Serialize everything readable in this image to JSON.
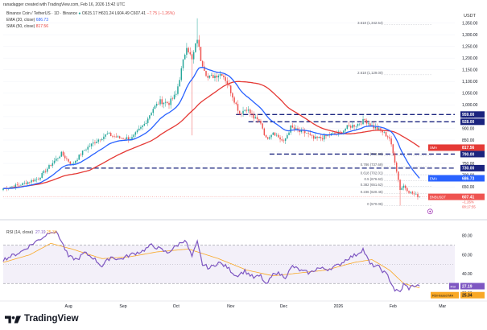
{
  "header": {
    "created_line": "ranadagger created with TradingView.com, Feb 16, 2026 15:42 UTC",
    "symbol_line_start": "Binance Coin / TetherUS · 1D · Binance",
    "ohlc": [
      "O615.17",
      "H631.24",
      "L604.49",
      "C607.41",
      "−7.75 (−1.26%)"
    ],
    "ema_line": [
      "EMA (20, close)",
      "686.73"
    ],
    "sma_line": [
      "SMA (50, close)",
      "817.56"
    ],
    "currency": "USDT"
  },
  "colors": {
    "up": "#26a69a",
    "down": "#ef5350",
    "ema": "#2962ff",
    "sma": "#e53935",
    "rsi": "#7e57c2",
    "rsi_ma": "#f9a825",
    "level": "#1a237e",
    "bg": "#ffffff"
  },
  "chart_data": [
    {
      "type": "candlestick",
      "title": "Binance Coin / TetherUS · 1D · Binance",
      "ylabel": "USDT",
      "ylim": [
        520,
        1400
      ],
      "x_ticks": [
        "Aug",
        "Sep",
        "Oct",
        "Nov",
        "Dec",
        "2026",
        "Feb",
        "Mar"
      ],
      "y_ticks": [
        600,
        650,
        700,
        750,
        800,
        850,
        900,
        950,
        1000,
        1050,
        1100,
        1150,
        1200,
        1250,
        1300,
        1350
      ],
      "close_anchors": [
        [
          "2025-06-25",
          643
        ],
        [
          "2025-07-05",
          660
        ],
        [
          "2025-07-15",
          686
        ],
        [
          "2025-07-22",
          745
        ],
        [
          "2025-07-28",
          792
        ],
        [
          "2025-08-03",
          745
        ],
        [
          "2025-08-10",
          808
        ],
        [
          "2025-08-17",
          848
        ],
        [
          "2025-08-23",
          875
        ],
        [
          "2025-08-30",
          858
        ],
        [
          "2025-09-06",
          858
        ],
        [
          "2025-09-13",
          918
        ],
        [
          "2025-09-18",
          985
        ],
        [
          "2025-09-22",
          1015
        ],
        [
          "2025-09-27",
          1008
        ],
        [
          "2025-10-01",
          1045
        ],
        [
          "2025-10-04",
          1150
        ],
        [
          "2025-10-07",
          1255
        ],
        [
          "2025-10-10",
          1190
        ],
        [
          "2025-10-13",
          1285
        ],
        [
          "2025-10-15",
          1195
        ],
        [
          "2025-10-19",
          1115
        ],
        [
          "2025-10-23",
          1125
        ],
        [
          "2025-10-27",
          1135
        ],
        [
          "2025-10-30",
          1095
        ],
        [
          "2025-11-03",
          1020
        ],
        [
          "2025-11-06",
          965
        ],
        [
          "2025-11-10",
          985
        ],
        [
          "2025-11-14",
          945
        ],
        [
          "2025-11-18",
          925
        ],
        [
          "2025-11-21",
          855
        ],
        [
          "2025-11-25",
          885
        ],
        [
          "2025-12-01",
          840
        ],
        [
          "2025-12-05",
          905
        ],
        [
          "2025-12-10",
          885
        ],
        [
          "2025-12-14",
          880
        ],
        [
          "2025-12-18",
          855
        ],
        [
          "2025-12-23",
          860
        ],
        [
          "2025-12-28",
          875
        ],
        [
          "2026-01-02",
          880
        ],
        [
          "2026-01-06",
          905
        ],
        [
          "2026-01-11",
          915
        ],
        [
          "2026-01-16",
          935
        ],
        [
          "2026-01-21",
          905
        ],
        [
          "2026-01-26",
          885
        ],
        [
          "2026-01-30",
          858
        ],
        [
          "2026-02-02",
          760
        ],
        [
          "2026-02-05",
          640
        ],
        [
          "2026-02-07",
          655
        ],
        [
          "2026-02-10",
          630
        ],
        [
          "2026-02-13",
          618
        ],
        [
          "2026-02-16",
          607.41
        ]
      ],
      "spikes": [
        {
          "date": "2025-10-10",
          "low": 870
        },
        {
          "date": "2025-10-13",
          "high": 1370
        },
        {
          "date": "2026-02-05",
          "low": 570
        }
      ],
      "series": [
        {
          "name": "EMA (20, close)",
          "last": 686.73
        },
        {
          "name": "SMA (50, close)",
          "last": 817.56
        }
      ],
      "levels": [
        {
          "label": "959.00",
          "value": 959,
          "start": "2025-11-04"
        },
        {
          "label": "928.00",
          "value": 928,
          "start": "2025-11-11"
        },
        {
          "label": "790.00",
          "value": 790,
          "start": "2025-11-23"
        },
        {
          "label": "730.00",
          "value": 730,
          "start": "2025-07-30"
        }
      ],
      "fib_labels": [
        {
          "text": "3.618 (1,342.54)",
          "value": 1342.54
        },
        {
          "text": "2.618 (1,129.00)",
          "value": 1129.0
        },
        {
          "text": "1 (783.39)",
          "value": 783.39
        },
        {
          "text": "0.786 (737.69)",
          "value": 737.69
        },
        {
          "text": "0.618 (702.01)",
          "value": 702.01
        },
        {
          "text": "0.5 (676.62)",
          "value": 676.62
        },
        {
          "text": "0.382 (651.62)",
          "value": 651.62
        },
        {
          "text": "0.236 (620.45)",
          "value": 620.45
        },
        {
          "text": "0 (570.06)",
          "value": 570.06
        }
      ],
      "price_tags": [
        {
          "text": "959.00",
          "value": 959,
          "color": "#1a237e"
        },
        {
          "text": "928.00",
          "value": 928,
          "color": "#1a237e"
        },
        {
          "text": "SMA",
          "text2": "817.56",
          "value": 817.56,
          "color": "#e53935"
        },
        {
          "text": "790.00",
          "value": 790,
          "color": "#1a237e"
        },
        {
          "text": "730.00",
          "value": 730,
          "color": "#1a237e"
        },
        {
          "text": "EMA",
          "text2": "686.73",
          "value": 686.73,
          "color": "#2962ff"
        },
        {
          "text": "BNBUSDT",
          "text2": "607.41",
          "value": 607.41,
          "color": "#ef5350"
        }
      ],
      "current_price": {
        "price": "607.41",
        "change": "−1.26%",
        "countdown": "08:17:55"
      }
    },
    {
      "type": "line",
      "title": "RSI (14, close)",
      "ylim": [
        15,
        95
      ],
      "y_ticks": [
        20,
        40,
        60,
        80
      ],
      "band": [
        30,
        70
      ],
      "series": [
        {
          "name": "RSI (14, close)",
          "last": 27.19
        },
        {
          "name": "RSI-based MA",
          "last": 25.34
        }
      ],
      "header_values": [
        "27.19",
        "25.34"
      ],
      "rsi_anchors": [
        [
          "2025-06-25",
          55
        ],
        [
          "2025-07-05",
          63
        ],
        [
          "2025-07-12",
          72
        ],
        [
          "2025-07-18",
          79
        ],
        [
          "2025-07-22",
          85
        ],
        [
          "2025-07-26",
          82
        ],
        [
          "2025-08-01",
          58
        ],
        [
          "2025-08-06",
          55
        ],
        [
          "2025-08-10",
          62
        ],
        [
          "2025-08-15",
          57
        ],
        [
          "2025-08-20",
          48
        ],
        [
          "2025-08-25",
          58
        ],
        [
          "2025-08-30",
          55
        ],
        [
          "2025-09-05",
          60
        ],
        [
          "2025-09-12",
          64
        ],
        [
          "2025-09-17",
          70
        ],
        [
          "2025-09-22",
          66
        ],
        [
          "2025-09-26",
          62
        ],
        [
          "2025-10-01",
          69
        ],
        [
          "2025-10-06",
          76
        ],
        [
          "2025-10-10",
          58
        ],
        [
          "2025-10-13",
          73
        ],
        [
          "2025-10-16",
          50
        ],
        [
          "2025-10-20",
          46
        ],
        [
          "2025-10-25",
          52
        ],
        [
          "2025-10-30",
          47
        ],
        [
          "2025-11-04",
          38
        ],
        [
          "2025-11-09",
          43
        ],
        [
          "2025-11-14",
          36
        ],
        [
          "2025-11-18",
          38
        ],
        [
          "2025-11-21",
          28
        ],
        [
          "2025-11-26",
          42
        ],
        [
          "2025-12-02",
          37
        ],
        [
          "2025-12-06",
          48
        ],
        [
          "2025-12-11",
          43
        ],
        [
          "2025-12-16",
          41
        ],
        [
          "2025-12-20",
          46
        ],
        [
          "2025-12-26",
          45
        ],
        [
          "2026-01-01",
          49
        ],
        [
          "2026-01-06",
          56
        ],
        [
          "2026-01-11",
          60
        ],
        [
          "2026-01-15",
          66
        ],
        [
          "2026-01-19",
          50
        ],
        [
          "2026-01-24",
          47
        ],
        [
          "2026-01-29",
          38
        ],
        [
          "2026-02-02",
          23
        ],
        [
          "2026-02-05",
          21
        ],
        [
          "2026-02-07",
          29
        ],
        [
          "2026-02-10",
          25
        ],
        [
          "2026-02-13",
          28
        ],
        [
          "2026-02-16",
          27.19
        ]
      ],
      "ma_anchors": [
        [
          "2025-06-25",
          52
        ],
        [
          "2025-07-10",
          60
        ],
        [
          "2025-07-22",
          72
        ],
        [
          "2025-08-03",
          66
        ],
        [
          "2025-08-20",
          56
        ],
        [
          "2025-09-05",
          58
        ],
        [
          "2025-09-20",
          63
        ],
        [
          "2025-10-08",
          66
        ],
        [
          "2025-10-25",
          56
        ],
        [
          "2025-11-10",
          44
        ],
        [
          "2025-11-25",
          38
        ],
        [
          "2025-12-10",
          41
        ],
        [
          "2025-12-25",
          44
        ],
        [
          "2026-01-10",
          52
        ],
        [
          "2026-01-20",
          55
        ],
        [
          "2026-01-30",
          44
        ],
        [
          "2026-02-07",
          30
        ],
        [
          "2026-02-16",
          25.34
        ]
      ]
    }
  ],
  "footer": {
    "brand": "TradingView"
  }
}
